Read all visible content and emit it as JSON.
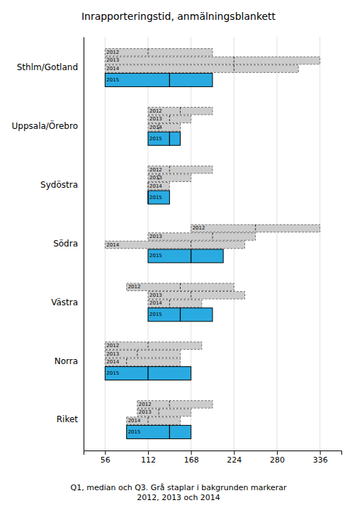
{
  "chart_data": {
    "type": "box",
    "orientation": "horizontal",
    "title": "Inrapporteringstid, anmälningsblankett",
    "xlabel": "Q1, median och Q3. Grå staplar i bakgrunden markerar\n2012, 2013 och 2014",
    "categories": [
      "Sthlm/Gotland",
      "Uppsala/Örebro",
      "Sydöstra",
      "Södra",
      "Västra",
      "Norra",
      "Riket"
    ],
    "series": [
      {
        "name": "2012",
        "color": "#cccccc",
        "line_style": "dashed",
        "q1": [
          56,
          112,
          112,
          168,
          84,
          56,
          98
        ],
        "median": [
          112,
          154,
          140,
          252,
          154,
          112,
          140
        ],
        "q3": [
          196,
          196,
          196,
          336,
          224,
          182,
          196
        ]
      },
      {
        "name": "2013",
        "color": "#cccccc",
        "line_style": "dashed",
        "q1": [
          56,
          112,
          112,
          112,
          112,
          56,
          98
        ],
        "median": [
          224,
          140,
          126,
          196,
          168,
          98,
          126
        ],
        "q3": [
          336,
          168,
          168,
          252,
          238,
          154,
          168
        ]
      },
      {
        "name": "2014",
        "color": "#cccccc",
        "line_style": "dashed",
        "q1": [
          56,
          112,
          112,
          56,
          112,
          56,
          84
        ],
        "median": [
          224,
          126,
          112,
          168,
          140,
          84,
          112
        ],
        "q3": [
          308,
          154,
          140,
          238,
          182,
          154,
          154
        ]
      },
      {
        "name": "2015",
        "color": "#29abe2",
        "line_style": "solid",
        "q1": [
          56,
          112,
          112,
          112,
          112,
          56,
          84
        ],
        "median": [
          140,
          140,
          112,
          168,
          154,
          112,
          140
        ],
        "q3": [
          196,
          154,
          140,
          210,
          196,
          168,
          168
        ]
      }
    ],
    "xlim": [
      28,
      364
    ],
    "xticks": [
      56,
      112,
      168,
      224,
      280,
      336
    ],
    "grid": true
  }
}
